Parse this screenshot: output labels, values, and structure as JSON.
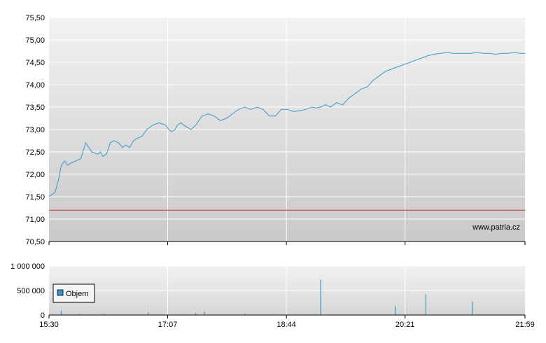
{
  "colors": {
    "price_line": "#3399cc",
    "reference_line": "#cc3333",
    "volume_bar": "#3399cc",
    "plot_background_top": "#f2f2f2",
    "plot_background_bottom": "#c8c8c8",
    "grid": "#ffffff",
    "axis": "#000000"
  },
  "watermark": "www.patria.cz",
  "chart_data": [
    {
      "type": "line",
      "name": "price-chart",
      "ylim": [
        70.5,
        75.5
      ],
      "y_ticks": [
        "75,50",
        "75,00",
        "74,50",
        "74,00",
        "73,50",
        "73,00",
        "72,50",
        "72,00",
        "71,50",
        "71,00",
        "70,50"
      ],
      "y_tick_values": [
        75.5,
        75.0,
        74.5,
        74.0,
        73.5,
        73.0,
        72.5,
        72.0,
        71.5,
        71.0,
        70.5
      ],
      "x_ticks": [
        "15:30",
        "17:07",
        "18:44",
        "20:21",
        "21:59"
      ],
      "x_tick_minutes": [
        0,
        97,
        194,
        291,
        389
      ],
      "grid": true,
      "reference_line": {
        "value": 71.2
      },
      "series": [
        {
          "x_minutes": [
            0,
            5,
            8,
            10,
            13,
            15,
            18,
            22,
            26,
            30,
            35,
            40,
            42,
            44,
            47,
            50,
            53,
            57,
            60,
            63,
            66,
            69,
            72,
            76,
            80,
            85,
            90,
            95,
            98,
            100,
            103,
            105,
            108,
            110,
            113,
            116,
            120,
            125,
            130,
            135,
            140,
            145,
            150,
            155,
            160,
            165,
            170,
            175,
            180,
            185,
            190,
            195,
            200,
            205,
            210,
            215,
            218,
            222,
            226,
            230,
            235,
            240,
            245,
            250,
            255,
            260,
            265,
            270,
            275,
            280,
            285,
            290,
            295,
            300,
            305,
            310,
            315,
            320,
            325,
            330,
            335,
            340,
            345,
            350,
            355,
            360,
            365,
            370,
            375,
            380,
            385,
            389
          ],
          "y": [
            71.5,
            71.6,
            71.9,
            72.2,
            72.3,
            72.2,
            72.25,
            72.3,
            72.35,
            72.7,
            72.5,
            72.45,
            72.5,
            72.4,
            72.45,
            72.7,
            72.75,
            72.7,
            72.6,
            72.65,
            72.6,
            72.75,
            72.8,
            72.85,
            73.0,
            73.1,
            73.15,
            73.1,
            73.0,
            72.95,
            73.0,
            73.1,
            73.15,
            73.1,
            73.05,
            73.0,
            73.1,
            73.3,
            73.35,
            73.3,
            73.2,
            73.25,
            73.35,
            73.45,
            73.5,
            73.45,
            73.5,
            73.45,
            73.3,
            73.3,
            73.45,
            73.45,
            73.4,
            73.42,
            73.45,
            73.5,
            73.48,
            73.5,
            73.55,
            73.5,
            73.6,
            73.55,
            73.7,
            73.8,
            73.9,
            73.95,
            74.1,
            74.2,
            74.3,
            74.35,
            74.4,
            74.45,
            74.5,
            74.55,
            74.6,
            74.65,
            74.68,
            74.7,
            74.72,
            74.7,
            74.7,
            74.7,
            74.7,
            74.72,
            74.7,
            74.7,
            74.68,
            74.7,
            74.7,
            74.72,
            74.7,
            74.7
          ]
        }
      ]
    },
    {
      "type": "bar",
      "name": "volume-chart",
      "ylim": [
        0,
        1000000
      ],
      "y_ticks": [
        "1 000 000",
        "500 000",
        "0"
      ],
      "y_tick_values": [
        1000000,
        500000,
        0
      ],
      "legend": {
        "label": "Objem",
        "placement": "top-left"
      },
      "series": [
        {
          "name": "Objem",
          "x_minutes": [
            10,
            25,
            45,
            81,
            120,
            127,
            160,
            222,
            283,
            308,
            346
          ],
          "values": [
            90000,
            20000,
            20000,
            60000,
            40000,
            70000,
            30000,
            720000,
            180000,
            420000,
            270000
          ]
        }
      ]
    }
  ]
}
